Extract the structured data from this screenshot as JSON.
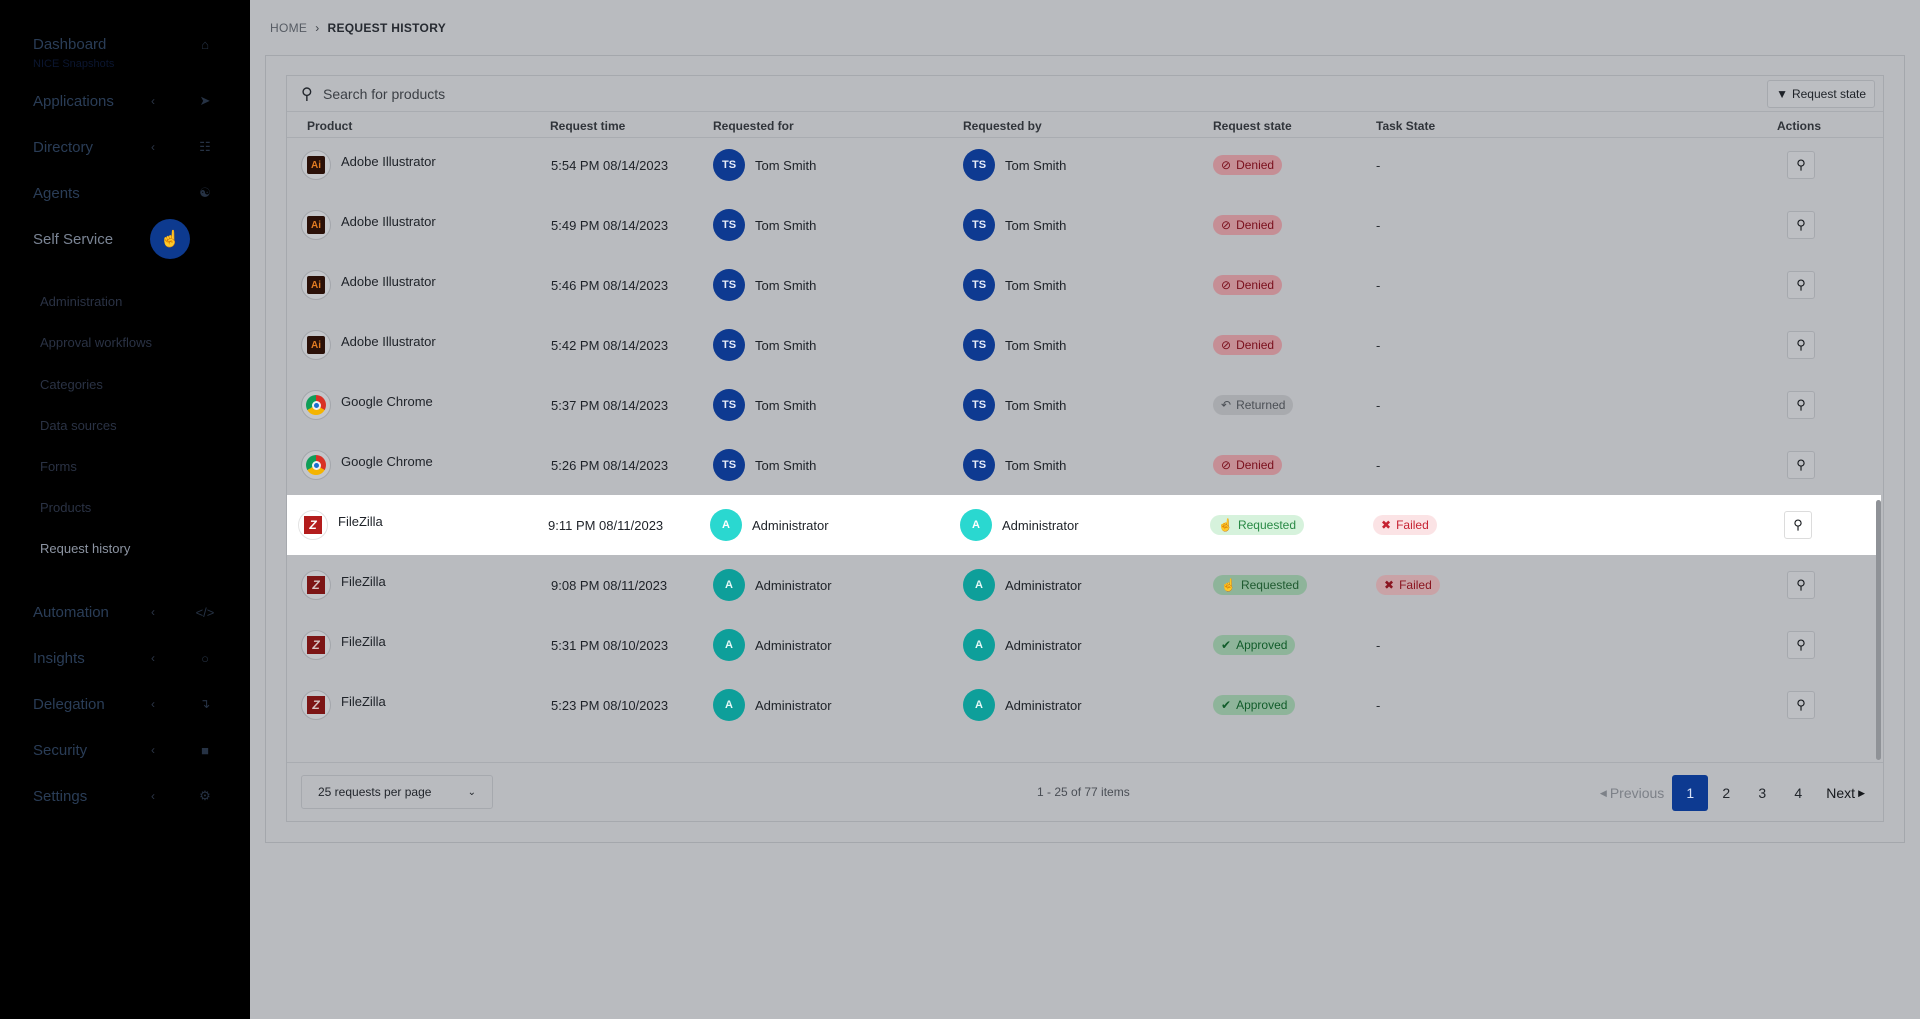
{
  "sidebar": {
    "dashboard": {
      "label": "Dashboard",
      "sub": "NICE Snapshots"
    },
    "items": [
      {
        "label": "Applications",
        "icon": "rocket-icon"
      },
      {
        "label": "Directory",
        "icon": "sitemap-icon"
      },
      {
        "label": "Agents",
        "icon": "agents-icon"
      },
      {
        "label": "Self Service",
        "icon": "hand-pointer-icon"
      }
    ],
    "self_service_sub": [
      {
        "label": "Administration"
      },
      {
        "label": "Approval workflows"
      },
      {
        "label": "Categories"
      },
      {
        "label": "Data sources"
      },
      {
        "label": "Forms"
      },
      {
        "label": "Products"
      },
      {
        "label": "Request history"
      }
    ],
    "lower_items": [
      {
        "label": "Automation",
        "icon": "code-icon"
      },
      {
        "label": "Insights",
        "icon": "lightbulb-icon"
      },
      {
        "label": "Delegation",
        "icon": "delegation-icon"
      },
      {
        "label": "Security",
        "icon": "lock-icon"
      },
      {
        "label": "Settings",
        "icon": "gear-icon"
      }
    ]
  },
  "breadcrumb": {
    "home": "HOME",
    "separator": "›",
    "current": "REQUEST HISTORY"
  },
  "search": {
    "placeholder": "Search for products",
    "filter_button": "Request state"
  },
  "table": {
    "headers": {
      "product": "Product",
      "request_time": "Request time",
      "requested_for": "Requested for",
      "requested_by": "Requested by",
      "request_state": "Request state",
      "task_state": "Task State",
      "actions": "Actions"
    },
    "rows": [
      {
        "product": "Adobe Illustrator",
        "icon": "illustrator",
        "time": "5:54 PM 08/14/2023",
        "for_initials": "TS",
        "for_name": "Tom Smith",
        "by_initials": "TS",
        "by_name": "Tom Smith",
        "state": "Denied",
        "task": "-"
      },
      {
        "product": "Adobe Illustrator",
        "icon": "illustrator",
        "time": "5:49 PM 08/14/2023",
        "for_initials": "TS",
        "for_name": "Tom Smith",
        "by_initials": "TS",
        "by_name": "Tom Smith",
        "state": "Denied",
        "task": "-"
      },
      {
        "product": "Adobe Illustrator",
        "icon": "illustrator",
        "time": "5:46 PM 08/14/2023",
        "for_initials": "TS",
        "for_name": "Tom Smith",
        "by_initials": "TS",
        "by_name": "Tom Smith",
        "state": "Denied",
        "task": "-"
      },
      {
        "product": "Adobe Illustrator",
        "icon": "illustrator",
        "time": "5:42 PM 08/14/2023",
        "for_initials": "TS",
        "for_name": "Tom Smith",
        "by_initials": "TS",
        "by_name": "Tom Smith",
        "state": "Denied",
        "task": "-"
      },
      {
        "product": "Google Chrome",
        "icon": "chrome",
        "time": "5:37 PM 08/14/2023",
        "for_initials": "TS",
        "for_name": "Tom Smith",
        "by_initials": "TS",
        "by_name": "Tom Smith",
        "state": "Returned",
        "task": "-"
      },
      {
        "product": "Google Chrome",
        "icon": "chrome",
        "time": "5:26 PM 08/14/2023",
        "for_initials": "TS",
        "for_name": "Tom Smith",
        "by_initials": "TS",
        "by_name": "Tom Smith",
        "state": "Denied",
        "task": "-"
      },
      {
        "product": "FileZilla",
        "icon": "filezilla",
        "time": "9:11 PM 08/11/2023",
        "for_initials": "A",
        "for_name": "Administrator",
        "by_initials": "A",
        "by_name": "Administrator",
        "state": "Requested",
        "task": "Failed"
      },
      {
        "product": "FileZilla",
        "icon": "filezilla",
        "time": "9:08 PM 08/11/2023",
        "for_initials": "A",
        "for_name": "Administrator",
        "by_initials": "A",
        "by_name": "Administrator",
        "state": "Requested",
        "task": "Failed"
      },
      {
        "product": "FileZilla",
        "icon": "filezilla",
        "time": "5:31 PM 08/10/2023",
        "for_initials": "A",
        "for_name": "Administrator",
        "by_initials": "A",
        "by_name": "Administrator",
        "state": "Approved",
        "task": "-"
      },
      {
        "product": "FileZilla",
        "icon": "filezilla",
        "time": "5:23 PM 08/10/2023",
        "for_initials": "A",
        "for_name": "Administrator",
        "by_initials": "A",
        "by_name": "Administrator",
        "state": "Approved",
        "task": "-"
      }
    ]
  },
  "footer": {
    "per_page": "25 requests per page",
    "range": "1 - 25 of 77 items",
    "previous": "Previous",
    "pages": [
      "1",
      "2",
      "3",
      "4"
    ],
    "next": "Next"
  },
  "colors": {
    "accent": "#0d3a91",
    "denied": "#7a0f1c",
    "approved": "#115c2a",
    "failed": "#c62232"
  }
}
